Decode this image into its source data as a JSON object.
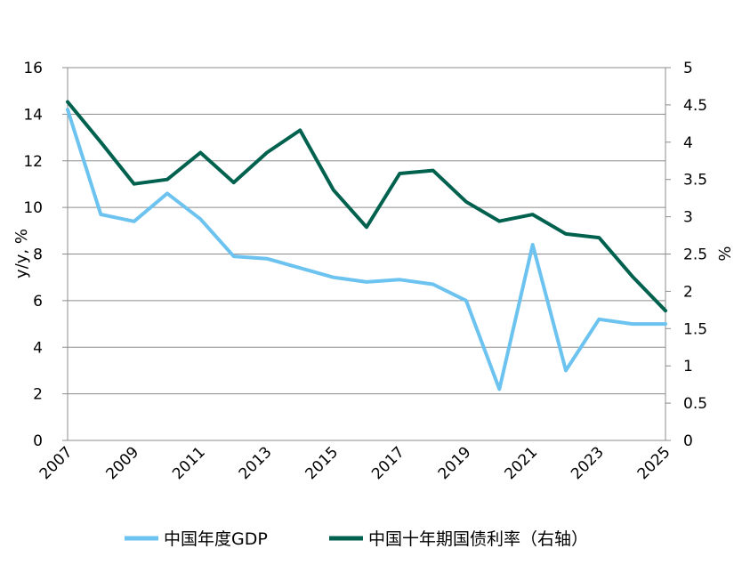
{
  "chart_data": {
    "type": "line",
    "x": [
      2007,
      2008,
      2009,
      2010,
      2011,
      2012,
      2013,
      2014,
      2015,
      2016,
      2017,
      2018,
      2019,
      2020,
      2021,
      2022,
      2023,
      2024,
      2025
    ],
    "x_tick_labels": [
      "2007",
      "2009",
      "2011",
      "2013",
      "2015",
      "2017",
      "2019",
      "2021",
      "2023",
      "2025"
    ],
    "ylabel_left": "y/y, %",
    "ylabel_right": "%",
    "ylim_left": [
      0,
      16
    ],
    "ylim_right": [
      0,
      5
    ],
    "y_ticks_left": [
      "0",
      "2",
      "4",
      "6",
      "8",
      "10",
      "12",
      "14",
      "16"
    ],
    "y_ticks_right": [
      "0",
      "0.5",
      "1",
      "1.5",
      "2",
      "2.5",
      "3",
      "3.5",
      "4",
      "4.5",
      "5"
    ],
    "grid": true,
    "legend_position": "bottom",
    "series": [
      {
        "name": "中国年度GDP",
        "axis": "left",
        "color": "#6cc3f0",
        "values": [
          14.2,
          9.7,
          9.4,
          10.6,
          9.5,
          7.9,
          7.8,
          7.4,
          7.0,
          6.8,
          6.9,
          6.7,
          6.0,
          2.2,
          8.4,
          3.0,
          5.2,
          5.0,
          5.0
        ]
      },
      {
        "name": "中国十年期国债利率（右轴）",
        "axis": "right",
        "color": "#00614f",
        "values": [
          4.54,
          4.0,
          3.44,
          3.5,
          3.86,
          3.46,
          3.86,
          4.16,
          3.36,
          2.86,
          3.58,
          3.62,
          3.2,
          2.94,
          3.03,
          2.77,
          2.72,
          2.2,
          1.74
        ]
      }
    ]
  }
}
